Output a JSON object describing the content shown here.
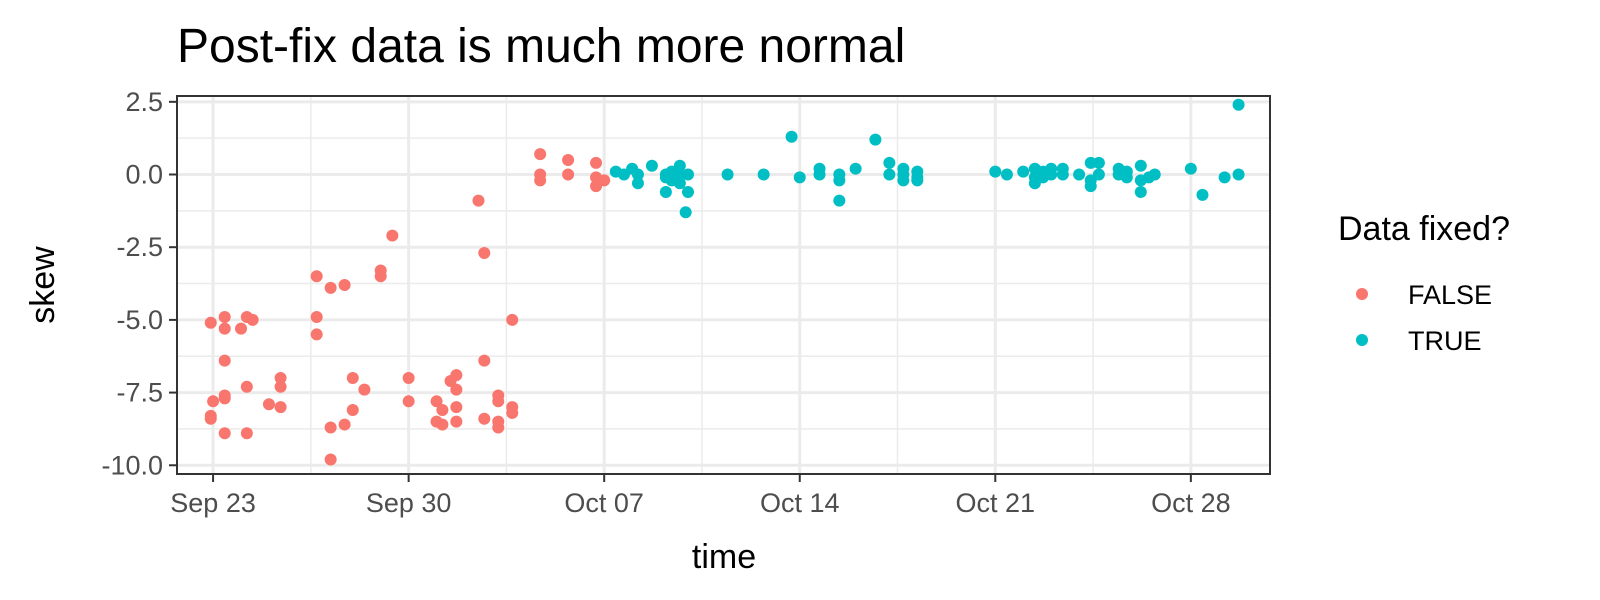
{
  "chart_data": {
    "type": "scatter",
    "title": "Post-fix data is much more normal",
    "xlabel": "time",
    "ylabel": "skew",
    "x_axis_type": "date",
    "xlim": [
      "2019-09-21T17:00",
      "2019-10-30T20:00"
    ],
    "ylim": [
      -10.3,
      2.7
    ],
    "x_ticks": [
      {
        "date": "2019-09-23",
        "label": "Sep 23"
      },
      {
        "date": "2019-09-30",
        "label": "Sep 30"
      },
      {
        "date": "2019-10-07",
        "label": "Oct 07"
      },
      {
        "date": "2019-10-14",
        "label": "Oct 14"
      },
      {
        "date": "2019-10-21",
        "label": "Oct 21"
      },
      {
        "date": "2019-10-28",
        "label": "Oct 28"
      }
    ],
    "y_ticks": [
      {
        "value": 2.5,
        "label": "2.5"
      },
      {
        "value": 0,
        "label": "0.0"
      },
      {
        "value": -2.5,
        "label": "-2.5"
      },
      {
        "value": -5,
        "label": "-5.0"
      },
      {
        "value": -7.5,
        "label": "-7.5"
      },
      {
        "value": -10,
        "label": "-10.0"
      }
    ],
    "grid": true,
    "legend": {
      "title": "Data fixed?",
      "position": "right"
    },
    "series": [
      {
        "name": "FALSE",
        "color": "#F8766D",
        "points": [
          [
            "2019-09-22T22:00",
            -5.1
          ],
          [
            "2019-09-22T22:00",
            -8.3
          ],
          [
            "2019-09-22T22:00",
            -8.4
          ],
          [
            "2019-09-23T00:00",
            -7.8
          ],
          [
            "2019-09-23T10:00",
            -4.9
          ],
          [
            "2019-09-23T10:00",
            -5.3
          ],
          [
            "2019-09-23T10:00",
            -6.4
          ],
          [
            "2019-09-23T10:00",
            -7.6
          ],
          [
            "2019-09-23T10:00",
            -7.7
          ],
          [
            "2019-09-23T10:00",
            -8.9
          ],
          [
            "2019-09-24T00:00",
            -5.3
          ],
          [
            "2019-09-24T05:00",
            -4.9
          ],
          [
            "2019-09-24T05:00",
            -7.3
          ],
          [
            "2019-09-24T05:00",
            -8.9
          ],
          [
            "2019-09-24T10:00",
            -5.0
          ],
          [
            "2019-09-25T00:00",
            -7.9
          ],
          [
            "2019-09-25T10:00",
            -8.0
          ],
          [
            "2019-09-25T10:00",
            -7.0
          ],
          [
            "2019-09-25T10:00",
            -7.3
          ],
          [
            "2019-09-26T17:00",
            -5.5
          ],
          [
            "2019-09-26T17:00",
            -3.5
          ],
          [
            "2019-09-26T17:00",
            -4.9
          ],
          [
            "2019-09-27T05:00",
            -3.9
          ],
          [
            "2019-09-27T05:00",
            -8.7
          ],
          [
            "2019-09-27T05:00",
            -9.8
          ],
          [
            "2019-09-27T17:00",
            -3.8
          ],
          [
            "2019-09-27T17:00",
            -8.6
          ],
          [
            "2019-09-28T00:00",
            -7.0
          ],
          [
            "2019-09-28T00:00",
            -8.1
          ],
          [
            "2019-09-28T10:00",
            -7.4
          ],
          [
            "2019-09-29T00:00",
            -3.3
          ],
          [
            "2019-09-29T00:00",
            -3.5
          ],
          [
            "2019-09-29T10:00",
            -2.1
          ],
          [
            "2019-09-30T00:00",
            -7.0
          ],
          [
            "2019-09-30T00:00",
            -7.8
          ],
          [
            "2019-10-01T00:00",
            -7.8
          ],
          [
            "2019-10-01T00:00",
            -8.5
          ],
          [
            "2019-10-01T05:00",
            -8.1
          ],
          [
            "2019-10-01T05:00",
            -8.6
          ],
          [
            "2019-10-01T12:00",
            -7.1
          ],
          [
            "2019-10-01T17:00",
            -7.4
          ],
          [
            "2019-10-01T17:00",
            -8.0
          ],
          [
            "2019-10-01T17:00",
            -6.9
          ],
          [
            "2019-10-01T17:00",
            -8.5
          ],
          [
            "2019-10-02T12:00",
            -0.9
          ],
          [
            "2019-10-02T17:00",
            -2.7
          ],
          [
            "2019-10-02T17:00",
            -6.4
          ],
          [
            "2019-10-02T17:00",
            -8.4
          ],
          [
            "2019-10-03T05:00",
            -7.6
          ],
          [
            "2019-10-03T05:00",
            -8.5
          ],
          [
            "2019-10-03T05:00",
            -8.7
          ],
          [
            "2019-10-03T05:00",
            -7.8
          ],
          [
            "2019-10-03T17:00",
            -5.0
          ],
          [
            "2019-10-03T17:00",
            -8.2
          ],
          [
            "2019-10-03T17:00",
            -8.0
          ],
          [
            "2019-10-04T17:00",
            0.7
          ],
          [
            "2019-10-04T17:00",
            0.0
          ],
          [
            "2019-10-04T17:00",
            -0.2
          ],
          [
            "2019-10-05T17:00",
            0.5
          ],
          [
            "2019-10-05T17:00",
            0.0
          ],
          [
            "2019-10-06T17:00",
            0.4
          ],
          [
            "2019-10-06T17:00",
            -0.1
          ],
          [
            "2019-10-06T17:00",
            -0.4
          ],
          [
            "2019-10-07T00:00",
            -0.2
          ]
        ]
      },
      {
        "name": "TRUE",
        "color": "#00BFC4",
        "points": [
          [
            "2019-10-07T10:00",
            0.1
          ],
          [
            "2019-10-07T17:00",
            0.0
          ],
          [
            "2019-10-08T00:00",
            0.2
          ],
          [
            "2019-10-08T05:00",
            -0.3
          ],
          [
            "2019-10-08T05:00",
            0.0
          ],
          [
            "2019-10-08T17:00",
            0.3
          ],
          [
            "2019-10-09T05:00",
            0.0
          ],
          [
            "2019-10-09T05:00",
            -0.1
          ],
          [
            "2019-10-09T05:00",
            -0.6
          ],
          [
            "2019-10-09T10:00",
            0.1
          ],
          [
            "2019-10-09T10:00",
            -0.2
          ],
          [
            "2019-10-09T17:00",
            0.3
          ],
          [
            "2019-10-09T17:00",
            0.0
          ],
          [
            "2019-10-09T17:00",
            -0.3
          ],
          [
            "2019-10-09T22:00",
            -1.3
          ],
          [
            "2019-10-10T00:00",
            -0.6
          ],
          [
            "2019-10-10T00:00",
            0.0
          ],
          [
            "2019-10-11T10:00",
            0.0
          ],
          [
            "2019-10-12T17:00",
            0.0
          ],
          [
            "2019-10-13T17:00",
            1.3
          ],
          [
            "2019-10-14T00:00",
            -0.1
          ],
          [
            "2019-10-14T17:00",
            0.0
          ],
          [
            "2019-10-14T17:00",
            0.2
          ],
          [
            "2019-10-15T10:00",
            0.0
          ],
          [
            "2019-10-15T10:00",
            -0.2
          ],
          [
            "2019-10-15T10:00",
            -0.9
          ],
          [
            "2019-10-16T00:00",
            0.2
          ],
          [
            "2019-10-16T17:00",
            1.2
          ],
          [
            "2019-10-17T05:00",
            0.4
          ],
          [
            "2019-10-17T05:00",
            0.0
          ],
          [
            "2019-10-17T17:00",
            0.2
          ],
          [
            "2019-10-17T17:00",
            0.0
          ],
          [
            "2019-10-17T17:00",
            -0.2
          ],
          [
            "2019-10-18T05:00",
            0.1
          ],
          [
            "2019-10-18T05:00",
            -0.1
          ],
          [
            "2019-10-18T05:00",
            -0.2
          ],
          [
            "2019-10-21T00:00",
            0.1
          ],
          [
            "2019-10-21T10:00",
            0.0
          ],
          [
            "2019-10-22T00:00",
            0.1
          ],
          [
            "2019-10-22T10:00",
            0.2
          ],
          [
            "2019-10-22T10:00",
            -0.1
          ],
          [
            "2019-10-22T10:00",
            -0.3
          ],
          [
            "2019-10-22T17:00",
            0.1
          ],
          [
            "2019-10-22T17:00",
            -0.1
          ],
          [
            "2019-10-23T00:00",
            0.2
          ],
          [
            "2019-10-23T00:00",
            0.0
          ],
          [
            "2019-10-23T10:00",
            0.2
          ],
          [
            "2019-10-23T10:00",
            0.0
          ],
          [
            "2019-10-24T00:00",
            0.0
          ],
          [
            "2019-10-24T10:00",
            0.4
          ],
          [
            "2019-10-24T10:00",
            -0.2
          ],
          [
            "2019-10-24T10:00",
            -0.4
          ],
          [
            "2019-10-24T17:00",
            0.4
          ],
          [
            "2019-10-24T17:00",
            0.0
          ],
          [
            "2019-10-25T10:00",
            0.2
          ],
          [
            "2019-10-25T10:00",
            0.0
          ],
          [
            "2019-10-25T17:00",
            0.1
          ],
          [
            "2019-10-25T17:00",
            -0.1
          ],
          [
            "2019-10-26T05:00",
            0.3
          ],
          [
            "2019-10-26T05:00",
            -0.2
          ],
          [
            "2019-10-26T05:00",
            -0.6
          ],
          [
            "2019-10-26T12:00",
            -0.1
          ],
          [
            "2019-10-26T17:00",
            0.0
          ],
          [
            "2019-10-28T00:00",
            0.2
          ],
          [
            "2019-10-28T10:00",
            -0.7
          ],
          [
            "2019-10-29T05:00",
            -0.1
          ],
          [
            "2019-10-29T17:00",
            2.4
          ],
          [
            "2019-10-29T17:00",
            0.0
          ]
        ]
      }
    ]
  }
}
